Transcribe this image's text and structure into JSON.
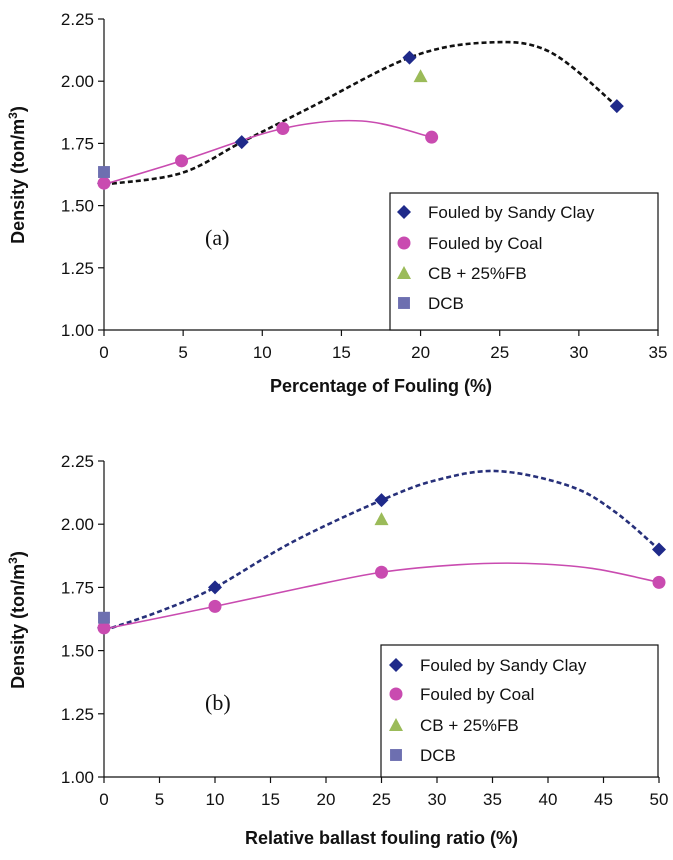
{
  "chart_data": [
    {
      "type": "scatter",
      "panel_label": "(a)",
      "xlabel": "Percentage of Fouling (%)",
      "ylabel_main": "Density (ton/m",
      "ylabel_sup": "3",
      "ylabel_close": ")",
      "xlim": [
        0,
        35
      ],
      "ylim": [
        1.0,
        2.25
      ],
      "x_ticks": [
        "0",
        "5",
        "10",
        "15",
        "20",
        "25",
        "30",
        "35"
      ],
      "y_ticks": [
        "1.00",
        "1.25",
        "1.50",
        "1.75",
        "2.00",
        "2.25"
      ],
      "legend_position": "bottom-right",
      "series": [
        {
          "name": "Fouled by Sandy Clay",
          "marker": "diamond",
          "color": "#1f2a8a",
          "x": [
            0,
            8.7,
            19.3,
            32.4
          ],
          "y": [
            1.59,
            1.755,
            2.095,
            1.9
          ]
        },
        {
          "name": "Fouled by Coal",
          "marker": "circle",
          "color": "#c94bb0",
          "x": [
            0,
            4.9,
            11.3,
            20.7
          ],
          "y": [
            1.59,
            1.68,
            1.81,
            1.775
          ]
        },
        {
          "name": "CB + 25%FB",
          "marker": "triangle",
          "color": "#9bbb59",
          "x": [
            20
          ],
          "y": [
            2.02
          ]
        },
        {
          "name": "DCB",
          "marker": "square",
          "color": "#6d6fb0",
          "x": [
            0
          ],
          "y": [
            1.635
          ]
        }
      ],
      "trendlines": [
        {
          "series": "Fouled by Sandy Clay",
          "style": "dashed",
          "color": "#111111",
          "x_range": [
            0,
            32.4
          ],
          "x": [
            0,
            4.85,
            8.7,
            12.9,
            19.3,
            24.1,
            28.1,
            32.4
          ],
          "y": [
            1.585,
            1.63,
            1.755,
            1.89,
            2.095,
            2.155,
            2.12,
            1.9
          ]
        },
        {
          "series": "Fouled by Coal",
          "style": "solid",
          "color": "#c94bb0",
          "x_range": [
            0,
            20.7
          ],
          "x": [
            0,
            4.9,
            11.3,
            16.3,
            20.7
          ],
          "y": [
            1.585,
            1.68,
            1.81,
            1.84,
            1.775
          ]
        }
      ]
    },
    {
      "type": "scatter",
      "panel_label": "(b)",
      "xlabel": "Relative ballast fouling ratio (%)",
      "ylabel_main": "Density (ton/m",
      "ylabel_sup": "3",
      "ylabel_close": ")",
      "xlim": [
        0,
        50
      ],
      "ylim": [
        1.0,
        2.25
      ],
      "x_ticks": [
        "0",
        "5",
        "10",
        "15",
        "20",
        "25",
        "30",
        "35",
        "40",
        "45",
        "50"
      ],
      "y_ticks": [
        "1.00",
        "1.25",
        "1.50",
        "1.75",
        "2.00",
        "2.25"
      ],
      "legend_position": "bottom-right",
      "series": [
        {
          "name": "Fouled by Sandy Clay",
          "marker": "diamond",
          "color": "#1f2a8a",
          "x": [
            0,
            10,
            25,
            50
          ],
          "y": [
            1.59,
            1.75,
            2.095,
            1.9
          ]
        },
        {
          "name": "Fouled by Coal",
          "marker": "circle",
          "color": "#c94bb0",
          "x": [
            0,
            10,
            25,
            50
          ],
          "y": [
            1.59,
            1.675,
            1.81,
            1.77
          ]
        },
        {
          "name": "CB + 25%FB",
          "marker": "triangle",
          "color": "#9bbb59",
          "x": [
            25
          ],
          "y": [
            2.02
          ]
        },
        {
          "name": "DCB",
          "marker": "square",
          "color": "#6d6fb0",
          "x": [
            0
          ],
          "y": [
            1.63
          ]
        }
      ],
      "trendlines": [
        {
          "series": "Fouled by Sandy Clay",
          "style": "dashed",
          "color": "#27307a",
          "x_range": [
            0,
            50
          ],
          "x": [
            0,
            5,
            10,
            17,
            25,
            30,
            35.5,
            42,
            46,
            50
          ],
          "y": [
            1.58,
            1.655,
            1.75,
            1.93,
            2.095,
            2.175,
            2.21,
            2.15,
            2.05,
            1.9
          ]
        },
        {
          "series": "Fouled by Coal",
          "style": "solid",
          "color": "#c94bb0",
          "x_range": [
            0,
            50
          ],
          "x": [
            0,
            10,
            18,
            25,
            32,
            38,
            44,
            50
          ],
          "y": [
            1.585,
            1.675,
            1.75,
            1.81,
            1.84,
            1.845,
            1.825,
            1.77
          ]
        }
      ]
    }
  ]
}
